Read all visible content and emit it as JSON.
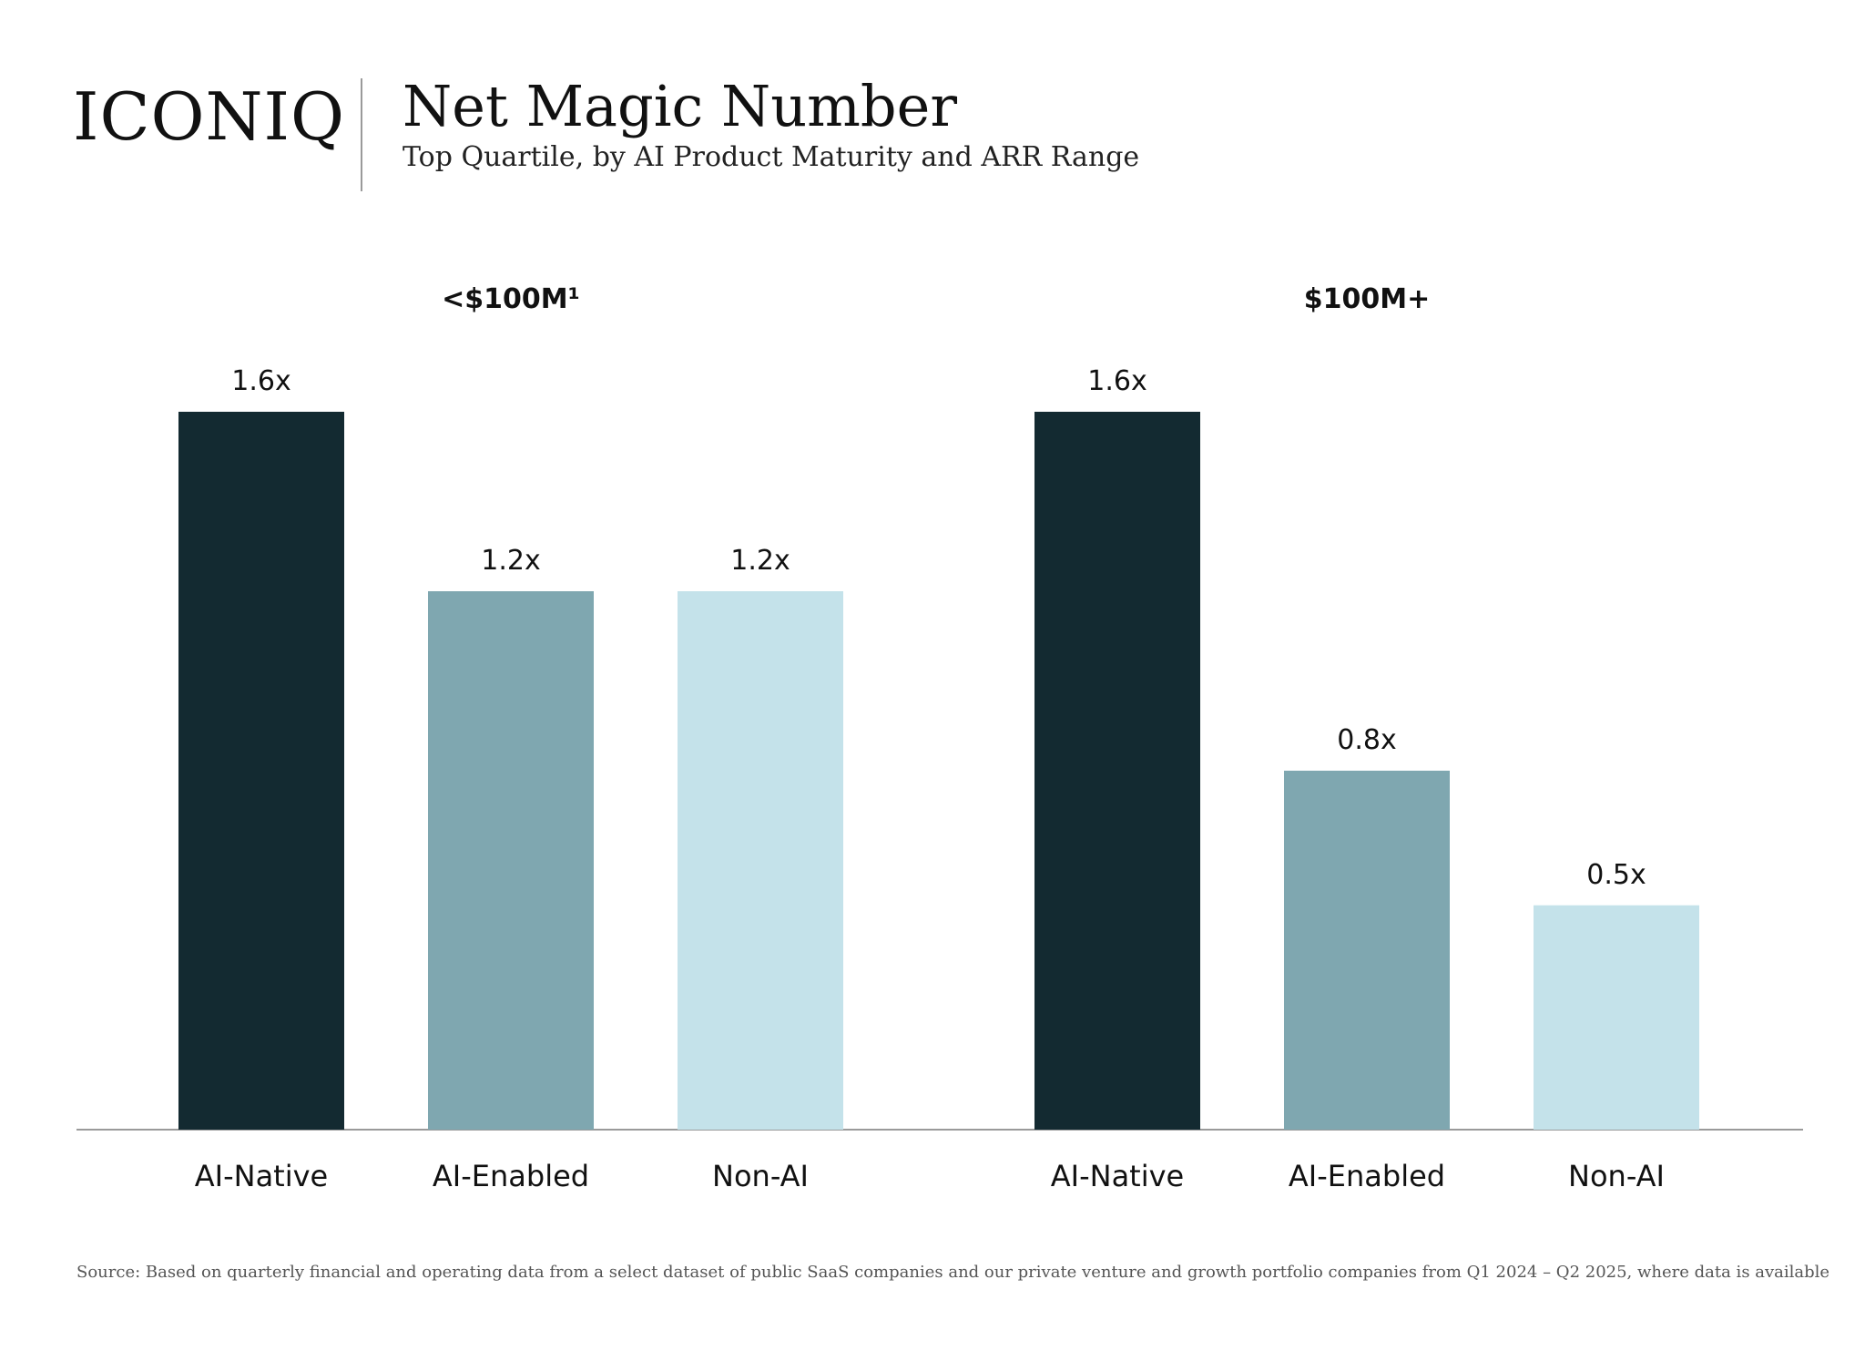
{
  "brand": {
    "logo_text": "ICONIQ"
  },
  "header": {
    "title": "Net Magic Number",
    "subtitle": "Top Quartile, by AI Product Maturity and ARR Range"
  },
  "footer": {
    "source": "Source: Based on quarterly financial and operating data from a select dataset of public SaaS companies and our private venture and growth portfolio companies from Q1 2024 – Q2 2025, where data is available"
  },
  "colors": {
    "ai_native": "#132a31",
    "ai_enabled": "#7fa7b0",
    "non_ai": "#c4e2ea",
    "axis": "#9a9a9a"
  },
  "chart_data": {
    "type": "bar",
    "title": "Net Magic Number",
    "subtitle": "Top Quartile, by AI Product Maturity and ARR Range",
    "groups": [
      {
        "name": "<$100M¹",
        "categories": [
          "AI-Native",
          "AI-Enabled",
          "Non-AI"
        ],
        "values": [
          1.6,
          1.2,
          1.2
        ],
        "labels": [
          "1.6x",
          "1.2x",
          "1.2x"
        ]
      },
      {
        "name": "$100M+",
        "categories": [
          "AI-Native",
          "AI-Enabled",
          "Non-AI"
        ],
        "values": [
          1.6,
          0.8,
          0.5
        ],
        "labels": [
          "1.6x",
          "0.8x",
          "0.5x"
        ]
      }
    ],
    "ylim": [
      0,
      1.6
    ],
    "grid": false,
    "legend": "none"
  }
}
